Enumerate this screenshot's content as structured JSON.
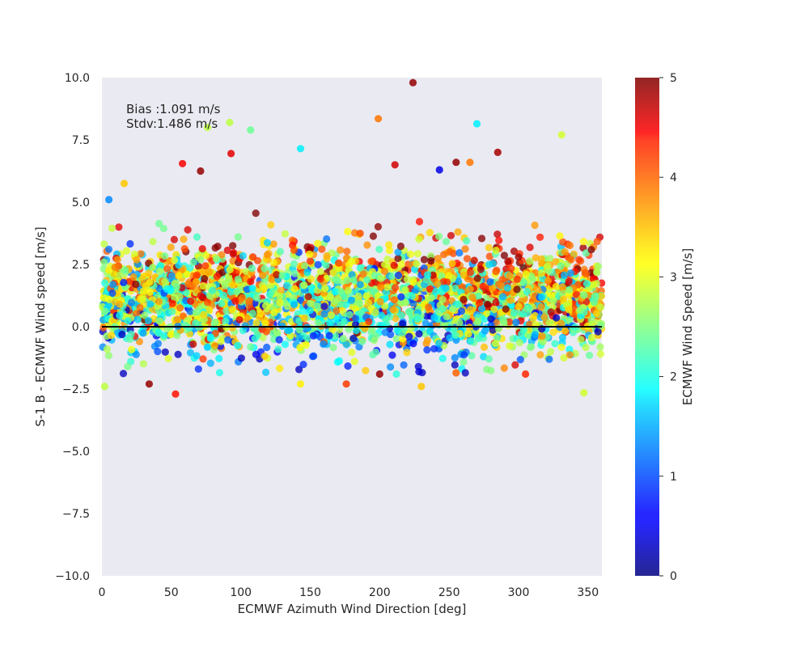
{
  "chart_data": {
    "type": "scatter",
    "xlabel": "ECMWF Azimuth Wind Direction [deg]",
    "ylabel": "S-1 B - ECMWF Wind speed [m/s]",
    "xlim": [
      0,
      360
    ],
    "ylim": [
      -10,
      10
    ],
    "x_ticks": [
      "0",
      "50",
      "100",
      "150",
      "200",
      "250",
      "300",
      "350"
    ],
    "y_ticks": [
      "10.0",
      "7.5",
      "5.0",
      "2.5",
      "0.0",
      "−2.5",
      "−5.0",
      "−7.5",
      "−10.0"
    ],
    "grid": false,
    "background": "#eaeaf2",
    "reference_line": 0,
    "annotation": [
      "Bias :1.091 m/s",
      "Stdv:1.486 m/s"
    ],
    "colorbar": {
      "label": "ECMWF Wind Speed [m/s]",
      "colormap": "jet",
      "range": [
        0,
        5
      ],
      "ticks": [
        "5",
        "4",
        "3",
        "2",
        "1",
        "0"
      ]
    },
    "point_cloud": {
      "count": 3000,
      "mean_y": 1.091,
      "stdev_y": 1.486,
      "x_range": [
        0,
        360
      ]
    },
    "outliers": [
      {
        "x": 224,
        "y": 9.8,
        "c": 4.9
      },
      {
        "x": 199,
        "y": 8.35,
        "c": 3.8
      },
      {
        "x": 92,
        "y": 8.2,
        "c": 2.8
      },
      {
        "x": 76,
        "y": 8.0,
        "c": 2.8
      },
      {
        "x": 107,
        "y": 7.9,
        "c": 2.4
      },
      {
        "x": 270,
        "y": 8.15,
        "c": 1.8
      },
      {
        "x": 331,
        "y": 7.7,
        "c": 2.9
      },
      {
        "x": 143,
        "y": 7.15,
        "c": 1.8
      },
      {
        "x": 93,
        "y": 6.95,
        "c": 4.5
      },
      {
        "x": 285,
        "y": 7.0,
        "c": 4.8
      },
      {
        "x": 58,
        "y": 6.55,
        "c": 4.4
      },
      {
        "x": 71,
        "y": 6.25,
        "c": 4.9
      },
      {
        "x": 211,
        "y": 6.5,
        "c": 4.6
      },
      {
        "x": 243,
        "y": 6.3,
        "c": 0.5
      },
      {
        "x": 265,
        "y": 6.6,
        "c": 3.8
      },
      {
        "x": 255,
        "y": 6.6,
        "c": 4.9
      },
      {
        "x": 5,
        "y": 5.1,
        "c": 1.3
      },
      {
        "x": 16,
        "y": 5.75,
        "c": 3.4
      },
      {
        "x": 200,
        "y": -1.9,
        "c": 4.9
      },
      {
        "x": 34,
        "y": -2.3,
        "c": 4.9
      },
      {
        "x": 53,
        "y": -2.7,
        "c": 4.3
      },
      {
        "x": 2,
        "y": -2.4,
        "c": 2.8
      },
      {
        "x": 230,
        "y": -2.4,
        "c": 3.4
      },
      {
        "x": 347,
        "y": -2.65,
        "c": 2.9
      },
      {
        "x": 143,
        "y": -2.3,
        "c": 3.2
      },
      {
        "x": 176,
        "y": -2.3,
        "c": 4.1
      },
      {
        "x": 305,
        "y": -1.9,
        "c": 4.2
      },
      {
        "x": 255,
        "y": -1.85,
        "c": 3.9
      }
    ]
  }
}
